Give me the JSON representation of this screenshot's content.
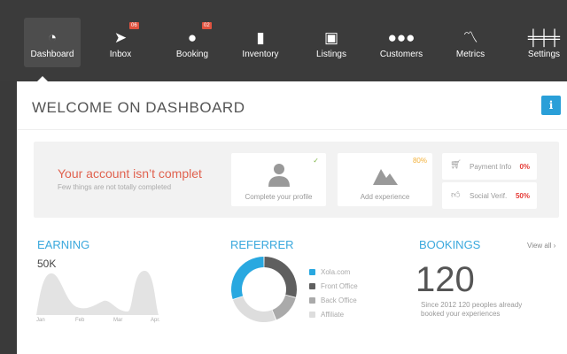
{
  "nav": {
    "items": [
      {
        "label": "Dashboard",
        "icon": "speedometer-icon",
        "active": true
      },
      {
        "label": "Inbox",
        "icon": "send-arrow-icon",
        "badge": "06"
      },
      {
        "label": "Booking",
        "icon": "piggy-bank-icon",
        "badge": "02"
      },
      {
        "label": "Inventory",
        "icon": "clipboard-icon"
      },
      {
        "label": "Listings",
        "icon": "archive-box-icon"
      },
      {
        "label": "Customers",
        "icon": "group-icon"
      },
      {
        "label": "Metrics",
        "icon": "line-chart-icon"
      },
      {
        "label": "Settings",
        "icon": "sliders-icon"
      }
    ]
  },
  "header": {
    "title": "WELCOME ON DASHBOARD",
    "info_icon": "i"
  },
  "account": {
    "title": "Your account isn’t complet",
    "subtitle": "Few things are not totally completed",
    "profile": {
      "label": "Complete your profile",
      "status": "✓"
    },
    "experience": {
      "label": "Add experience",
      "percent": "80%"
    },
    "payment": {
      "label": "Payment Info",
      "percent": "0%"
    },
    "social": {
      "label": "Social Verif.",
      "percent": "50%"
    }
  },
  "earning": {
    "title": "EARNING",
    "value": "50K",
    "months": [
      "Jan",
      "Feb",
      "Mar",
      "Apr."
    ]
  },
  "referrer": {
    "title": "REFERRER",
    "colors": [
      "#29a8e0",
      "#5f5f5f",
      "#aaaaaa",
      "#dddddd"
    ],
    "chart_data": {
      "type": "pie",
      "categories": [
        "Xola.com",
        "Front Office",
        "Back Office",
        "Affiliate"
      ],
      "values": [
        30,
        29,
        15,
        26
      ]
    }
  },
  "bookings": {
    "title": "BOOKINGS",
    "view_all": "View all ›",
    "count": "120",
    "description": "Since 2012 120 peoples already booked your experiences"
  }
}
